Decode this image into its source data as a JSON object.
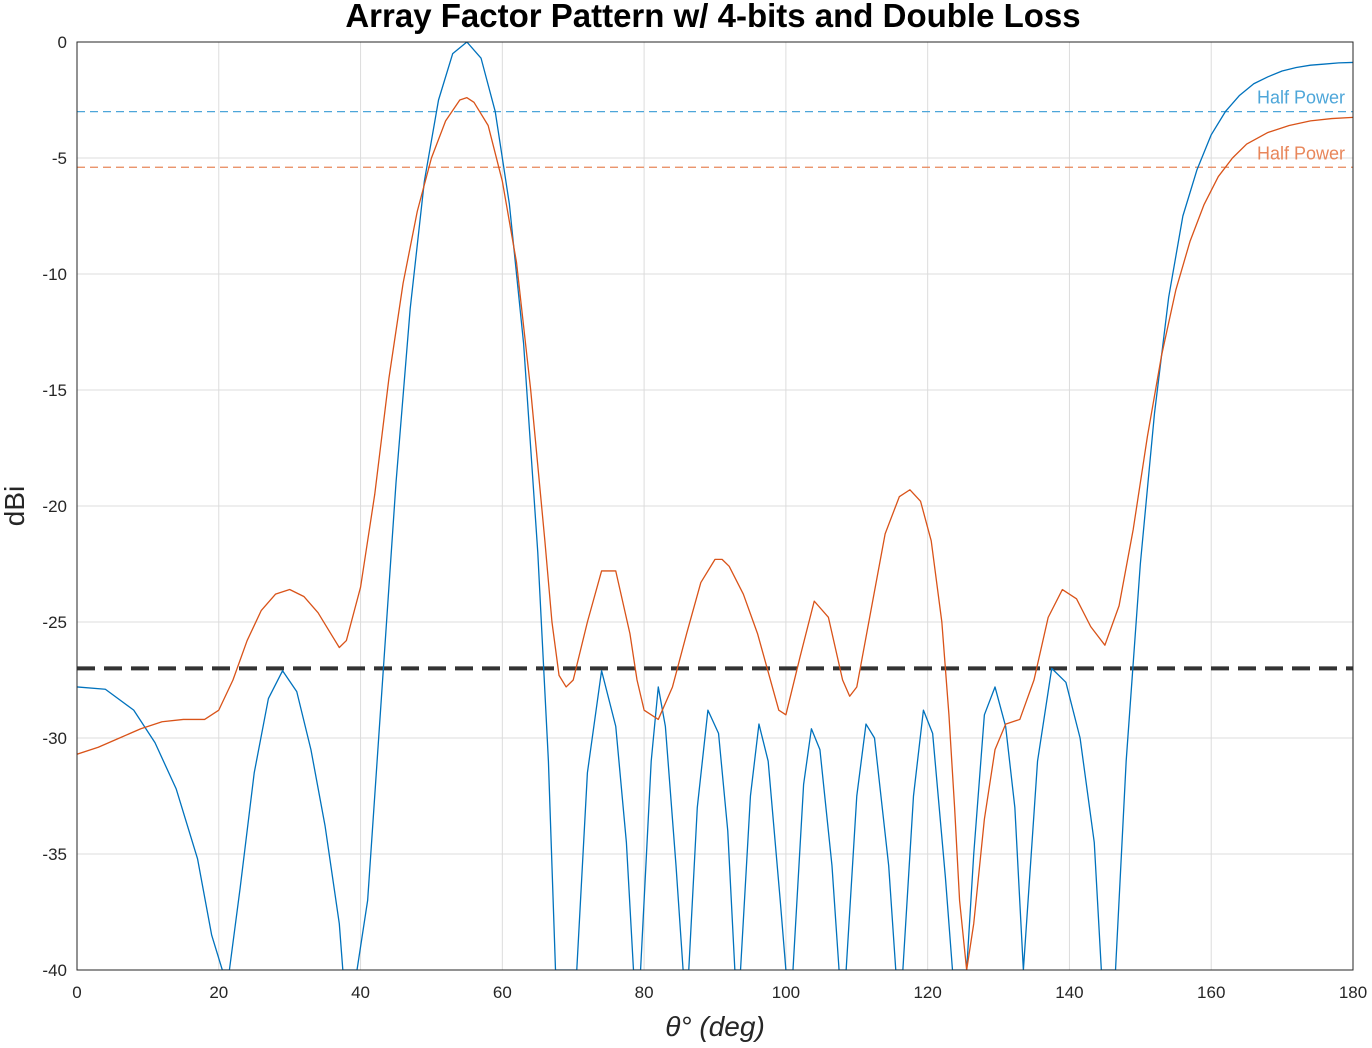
{
  "chart_data": {
    "type": "line",
    "title": "Array Factor Pattern w/ 4-bits and Double Loss",
    "xlabel": "θ° (deg)",
    "ylabel": "dBi",
    "xlim": [
      0,
      180
    ],
    "ylim": [
      -40,
      0
    ],
    "xticks": [
      "0",
      "20",
      "40",
      "60",
      "80",
      "100",
      "120",
      "140",
      "160",
      "180"
    ],
    "yticks": [
      "0",
      "-5",
      "-10",
      "-15",
      "-20",
      "-25",
      "-30",
      "-35",
      "-40"
    ],
    "grid": true,
    "colors": {
      "blue": "#0072BD",
      "orange": "#D95319",
      "hp_blue": "#4DA6D9",
      "hp_orange": "#E8865A",
      "threshold": "#333333"
    },
    "series": [
      {
        "key": "blue",
        "x": [
          0,
          4,
          8,
          11,
          14,
          17,
          19,
          20.5,
          21.5,
          23,
          25,
          27,
          29,
          31,
          33,
          35,
          37,
          37.5,
          38.5,
          39.5,
          41,
          43,
          45,
          47,
          49,
          51,
          53,
          55,
          57,
          59,
          61,
          63,
          65,
          66.5,
          67.5,
          68.5,
          69.5,
          70.5,
          72,
          74,
          76,
          77.5,
          78.5,
          79.5,
          81,
          82,
          83,
          84.5,
          85.5,
          86.3,
          87.5,
          89,
          90.5,
          91.8,
          92.8,
          93.6,
          95,
          96.2,
          97.5,
          99.2,
          100,
          101,
          102.5,
          103.6,
          104.8,
          106.5,
          107.5,
          108.5,
          110,
          111.3,
          112.5,
          114.5,
          115.5,
          116.5,
          118,
          119.4,
          120.7,
          122.5,
          123.5,
          124.2,
          124.8,
          125.5,
          126.5,
          128,
          129.5,
          131,
          132.3,
          133.5,
          135.5,
          137.5,
          139.5,
          141.5,
          143.5,
          144.5,
          145.5,
          146.5,
          148,
          150,
          152,
          154,
          156,
          158,
          160,
          162,
          164,
          166,
          168,
          170,
          172,
          174,
          176,
          178,
          180
        ],
        "y": [
          -27.8,
          -27.9,
          -28.8,
          -30.2,
          -32.2,
          -35.2,
          -38.5,
          -40,
          -40,
          -36.5,
          -31.5,
          -28.3,
          -27.1,
          -28,
          -30.5,
          -33.8,
          -38,
          -40,
          -40,
          -40,
          -37,
          -28,
          -19,
          -11.5,
          -6,
          -2.5,
          -0.5,
          0,
          -0.7,
          -3,
          -7,
          -13,
          -22,
          -31,
          -40,
          -40,
          -40,
          -40,
          -31.5,
          -27.1,
          -29.5,
          -34.5,
          -40,
          -40,
          -31,
          -27.8,
          -29.5,
          -35.5,
          -40,
          -40,
          -33,
          -28.8,
          -29.8,
          -34,
          -40,
          -40,
          -32.5,
          -29.4,
          -31,
          -37,
          -40,
          -40,
          -32,
          -29.6,
          -30.5,
          -35.5,
          -40,
          -40,
          -32.5,
          -29.4,
          -30,
          -35.5,
          -40,
          -40,
          -32.5,
          -28.8,
          -29.8,
          -36,
          -40,
          -40,
          -40,
          -40,
          -35,
          -29,
          -27.8,
          -29.5,
          -33,
          -40,
          -31,
          -27,
          -27.6,
          -30,
          -34.5,
          -40,
          -40,
          -40,
          -31,
          -22.5,
          -16,
          -11,
          -7.5,
          -5.5,
          -4,
          -3,
          -2.3,
          -1.8,
          -1.5,
          -1.25,
          -1.1,
          -1,
          -0.95,
          -0.9,
          -0.88
        ]
      },
      {
        "key": "orange",
        "x": [
          0,
          3,
          6,
          9,
          12,
          15,
          18,
          20,
          22,
          24,
          26,
          28,
          30,
          32,
          34,
          36,
          37,
          38,
          40,
          42,
          44,
          46,
          48,
          50,
          52,
          54,
          55,
          56,
          58,
          60,
          62,
          64,
          66,
          67,
          68,
          69,
          70,
          72,
          74,
          76,
          78,
          79,
          80,
          82,
          84,
          86,
          88,
          90,
          91,
          92,
          94,
          96,
          98,
          99,
          100,
          102,
          104,
          106,
          108,
          109,
          110,
          112,
          114,
          116,
          117.5,
          119,
          120.5,
          122,
          123,
          123.8,
          124.5,
          125.5,
          126.5,
          128,
          129.5,
          131,
          133,
          135,
          137,
          139,
          141,
          143,
          145,
          147,
          149,
          151,
          153,
          155,
          157,
          159,
          161,
          163,
          165,
          168,
          171,
          174,
          177,
          180
        ],
        "y": [
          -30.7,
          -30.4,
          -30,
          -29.6,
          -29.3,
          -29.2,
          -29.2,
          -28.8,
          -27.5,
          -25.8,
          -24.5,
          -23.8,
          -23.6,
          -23.9,
          -24.6,
          -25.6,
          -26.1,
          -25.8,
          -23.5,
          -19.5,
          -14.5,
          -10.4,
          -7.3,
          -5,
          -3.4,
          -2.5,
          -2.4,
          -2.6,
          -3.6,
          -6,
          -9.5,
          -15,
          -21.5,
          -25,
          -27.3,
          -27.8,
          -27.5,
          -25,
          -22.8,
          -22.8,
          -25.5,
          -27.5,
          -28.8,
          -29.2,
          -27.8,
          -25.5,
          -23.3,
          -22.3,
          -22.3,
          -22.6,
          -23.8,
          -25.5,
          -27.7,
          -28.8,
          -29,
          -26.5,
          -24.1,
          -24.8,
          -27.5,
          -28.2,
          -27.8,
          -24.5,
          -21.2,
          -19.6,
          -19.3,
          -19.8,
          -21.5,
          -25,
          -29,
          -33,
          -37,
          -40,
          -38,
          -33.5,
          -30.5,
          -29.4,
          -29.2,
          -27.5,
          -24.8,
          -23.6,
          -24,
          -25.2,
          -26,
          -24.3,
          -21,
          -17,
          -13.5,
          -10.7,
          -8.6,
          -7,
          -5.8,
          -5,
          -4.4,
          -3.9,
          -3.6,
          -3.4,
          -3.3,
          -3.25
        ]
      }
    ],
    "half_power_lines": [
      {
        "key": "blue",
        "y": -3,
        "label": "Half Power"
      },
      {
        "key": "orange",
        "y": -5.4,
        "label": "Half Power"
      }
    ],
    "threshold_line": {
      "y": -27
    }
  }
}
